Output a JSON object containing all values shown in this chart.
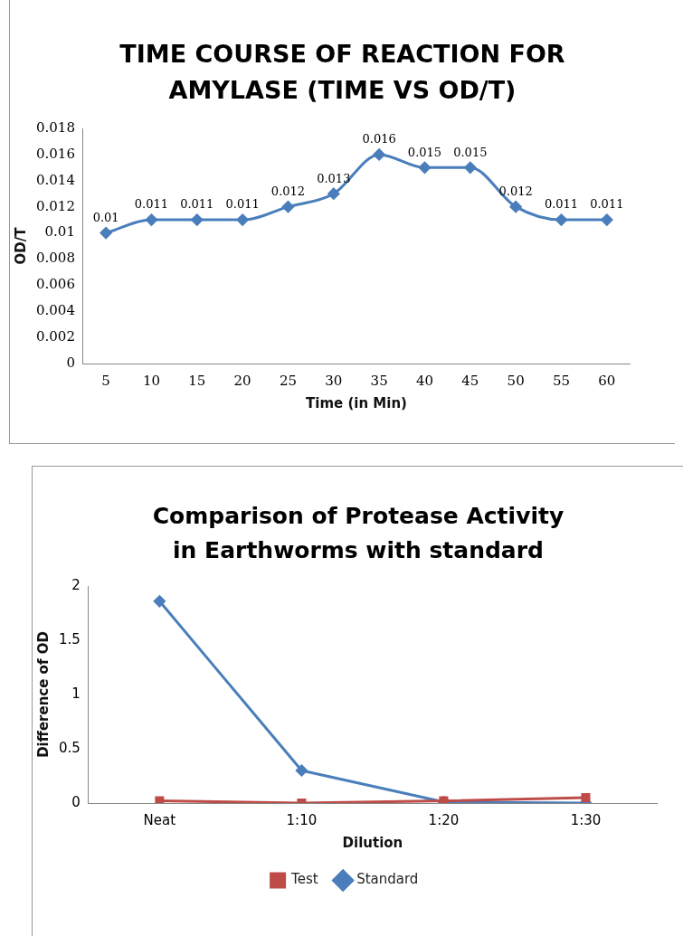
{
  "chart_data": [
    {
      "type": "line",
      "title": "TIME COURSE OF REACTION FOR AMYLASE (TIME VS OD/T)",
      "xlabel": "Time (in Min)",
      "ylabel": "OD/T",
      "categories": [
        "5",
        "10",
        "15",
        "20",
        "25",
        "30",
        "35",
        "40",
        "45",
        "50",
        "55",
        "60"
      ],
      "series": [
        {
          "color": "#4a7ebb",
          "values": [
            0.01,
            0.011,
            0.011,
            0.011,
            0.012,
            0.013,
            0.016,
            0.015,
            0.015,
            0.012,
            0.011,
            0.011
          ]
        }
      ],
      "ylim": [
        0,
        0.018
      ],
      "yticks": [
        0,
        0.002,
        0.004,
        0.006,
        0.008,
        0.01,
        0.012,
        0.014,
        0.016,
        0.018
      ],
      "grid": false,
      "legend": false,
      "marker": "diamond",
      "data_labels": true
    },
    {
      "type": "line",
      "title": "Comparison of Protease Activity in Earthworms  with standard",
      "xlabel": "Dilution",
      "ylabel": "Difference of OD",
      "categories": [
        "Neat",
        "1:10",
        "1:20",
        "1:30"
      ],
      "series": [
        {
          "name": "Standard",
          "color": "#4a7ebb",
          "marker": "diamond",
          "values": [
            1.86,
            0.3,
            0.01,
            0
          ]
        },
        {
          "name": "Test",
          "color": "#be4b48",
          "marker": "square",
          "values": [
            0.02,
            0,
            0.02,
            0.05
          ]
        }
      ],
      "ylim": [
        0,
        2
      ],
      "yticks": [
        0,
        0.5,
        1,
        1.5,
        2
      ],
      "grid": false,
      "legend": "bottom"
    }
  ]
}
